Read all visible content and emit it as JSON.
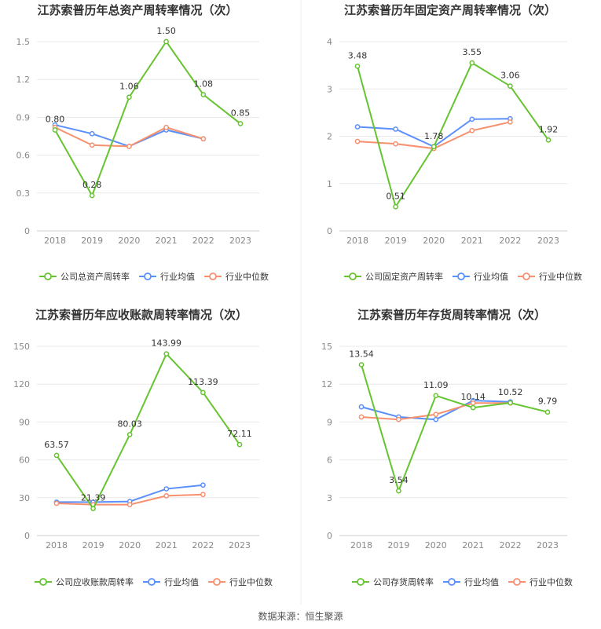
{
  "colors": {
    "company": "#66c431",
    "avg": "#5b8ff9",
    "median": "#f6906e"
  },
  "source": "数据来源：恒生聚源",
  "chart_data": [
    {
      "type": "line",
      "title": "江苏索普历年总资产周转率情况（次）",
      "categories": [
        "2018",
        "2019",
        "2020",
        "2021",
        "2022",
        "2023"
      ],
      "ylim": [
        0,
        1.5
      ],
      "yticks": [
        "0",
        "0.3",
        "0.6",
        "0.9",
        "1.2",
        "1.5"
      ],
      "grid": true,
      "legend_position": "bottom",
      "series": [
        {
          "name": "公司总资产周转率",
          "key": "company",
          "values": [
            0.8,
            0.28,
            1.06,
            1.5,
            1.08,
            0.85
          ],
          "labels": [
            "0.80",
            "0.28",
            "1.06",
            "1.50",
            "1.08",
            "0.85"
          ]
        },
        {
          "name": "行业均值",
          "key": "avg",
          "values": [
            0.84,
            0.77,
            0.67,
            0.8,
            0.73,
            null
          ]
        },
        {
          "name": "行业中位数",
          "key": "median",
          "values": [
            0.82,
            0.68,
            0.67,
            0.82,
            0.73,
            null
          ]
        }
      ]
    },
    {
      "type": "line",
      "title": "江苏索普历年固定资产周转率情况（次）",
      "categories": [
        "2018",
        "2019",
        "2020",
        "2021",
        "2022",
        "2023"
      ],
      "ylim": [
        0,
        4
      ],
      "yticks": [
        "0",
        "1",
        "2",
        "3",
        "4"
      ],
      "grid": true,
      "legend_position": "bottom",
      "series": [
        {
          "name": "公司固定资产周转率",
          "key": "company",
          "values": [
            3.48,
            0.51,
            1.78,
            3.55,
            3.06,
            1.92
          ],
          "labels": [
            "3.48",
            "0.51",
            "1.78",
            "3.55",
            "3.06",
            "1.92"
          ]
        },
        {
          "name": "行业均值",
          "key": "avg",
          "values": [
            2.2,
            2.15,
            1.78,
            2.36,
            2.37,
            null
          ]
        },
        {
          "name": "行业中位数",
          "key": "median",
          "values": [
            1.89,
            1.84,
            1.74,
            2.12,
            2.3,
            null
          ]
        }
      ]
    },
    {
      "type": "line",
      "title": "江苏索普历年应收账款周转率情况（次）",
      "categories": [
        "2018",
        "2019",
        "2020",
        "2021",
        "2022",
        "2023"
      ],
      "ylim": [
        0,
        150
      ],
      "yticks": [
        "0",
        "30",
        "60",
        "90",
        "120",
        "150"
      ],
      "grid": true,
      "legend_position": "bottom",
      "series": [
        {
          "name": "公司应收账款周转率",
          "key": "company",
          "values": [
            63.57,
            21.39,
            80.03,
            143.99,
            113.39,
            72.11
          ],
          "labels": [
            "63.57",
            "21.39",
            "80.03",
            "143.99",
            "113.39",
            "72.11"
          ]
        },
        {
          "name": "行业均值",
          "key": "avg",
          "values": [
            26.5,
            26.5,
            27.0,
            37.0,
            40.0,
            null
          ]
        },
        {
          "name": "行业中位数",
          "key": "median",
          "values": [
            25.5,
            24.5,
            24.5,
            31.5,
            32.5,
            null
          ]
        }
      ]
    },
    {
      "type": "line",
      "title": "江苏索普历年存货周转率情况（次）",
      "categories": [
        "2018",
        "2019",
        "2020",
        "2021",
        "2022",
        "2023"
      ],
      "ylim": [
        0,
        15
      ],
      "yticks": [
        "0",
        "3",
        "6",
        "9",
        "12",
        "15"
      ],
      "grid": true,
      "legend_position": "bottom",
      "series": [
        {
          "name": "公司存货周转率",
          "key": "company",
          "values": [
            13.54,
            3.54,
            11.09,
            10.14,
            10.52,
            9.79
          ],
          "labels": [
            "13.54",
            "3.54",
            "11.09",
            "10.14",
            "10.52",
            "9.79"
          ]
        },
        {
          "name": "行业均值",
          "key": "avg",
          "values": [
            10.2,
            9.4,
            9.2,
            10.7,
            10.6,
            null
          ]
        },
        {
          "name": "行业中位数",
          "key": "median",
          "values": [
            9.4,
            9.2,
            9.6,
            10.5,
            10.5,
            null
          ]
        }
      ]
    }
  ]
}
